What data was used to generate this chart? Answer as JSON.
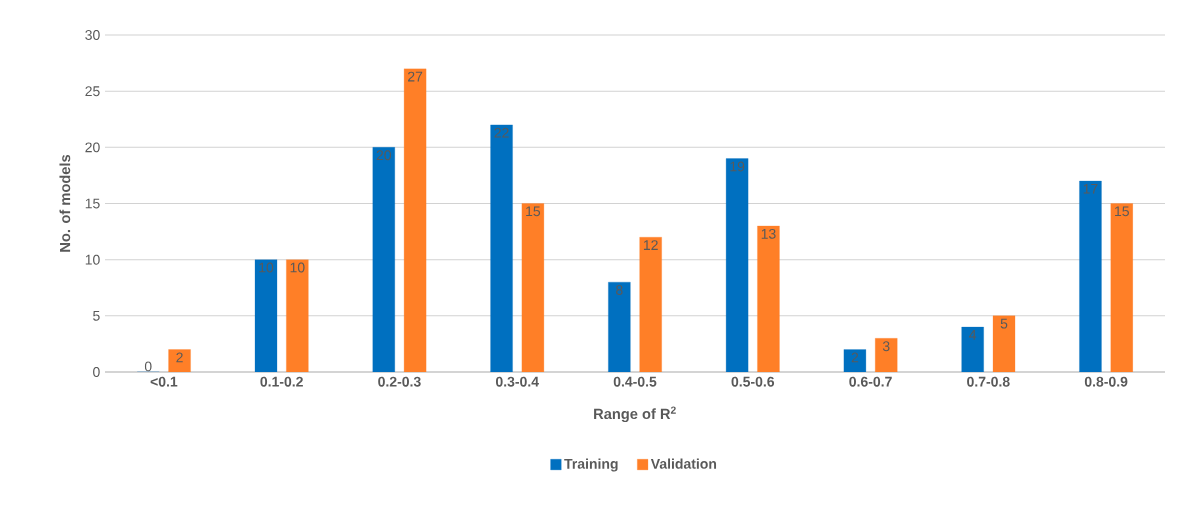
{
  "chart_data": {
    "type": "bar",
    "xlabel": "Range of R$^{2}$",
    "ylabel": "No. of models",
    "categories": [
      "<0.1",
      "0.1-0.2",
      "0.2-0.3",
      "0.3-0.4",
      "0.4-0.5",
      "0.5-0.6",
      "0.6-0.7",
      "0.7-0.8",
      "0.8-0.9"
    ],
    "series": [
      {
        "name": "Training",
        "color": "#0070c0",
        "values": [
          0,
          10,
          20,
          22,
          8,
          19,
          2,
          4,
          17
        ]
      },
      {
        "name": "Validation",
        "color": "#ff7f27",
        "values": [
          2,
          10,
          27,
          15,
          12,
          13,
          3,
          5,
          15
        ]
      }
    ],
    "ylim": [
      0,
      30
    ],
    "yticks": [
      0,
      5,
      10,
      15,
      20,
      25,
      30
    ],
    "grid": "y",
    "legend": "bottom",
    "data_labels": true
  }
}
